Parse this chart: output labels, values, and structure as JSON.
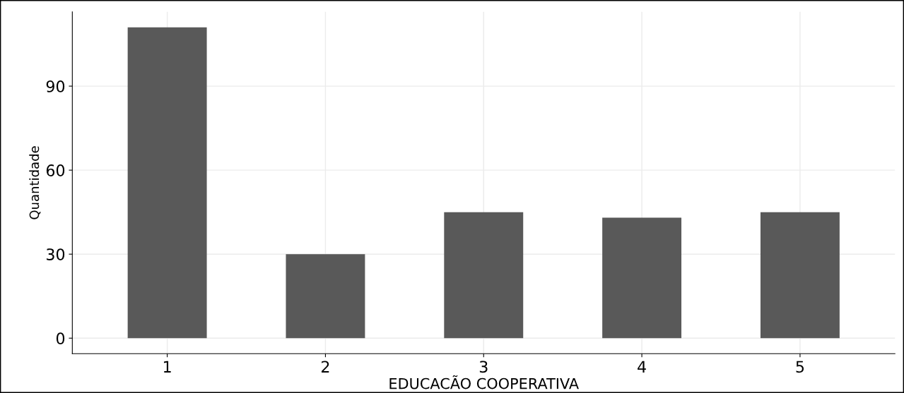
{
  "chart_data": {
    "type": "bar",
    "xlabel": "EDUCACÃO COOPERATIVA",
    "ylabel": "Quantidade",
    "categories": [
      "1",
      "2",
      "3",
      "4",
      "5"
    ],
    "values": [
      111,
      30,
      45,
      43,
      45
    ],
    "color": "#595959",
    "ylim": [
      -5.55,
      116.55
    ],
    "yticks": [
      0,
      30,
      60,
      90
    ],
    "grid": true
  }
}
